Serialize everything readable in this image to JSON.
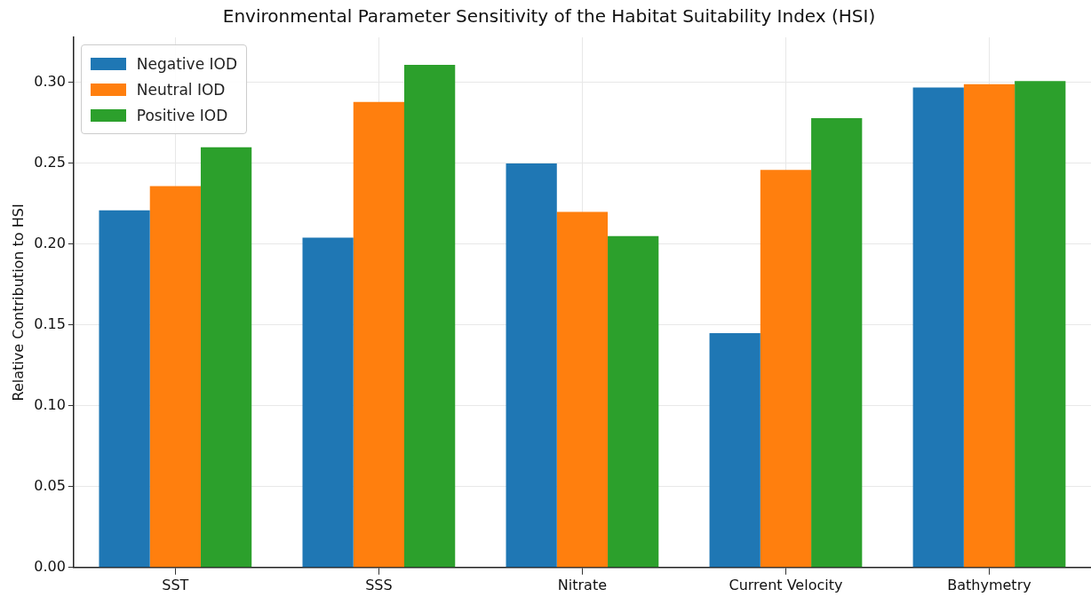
{
  "chart_data": {
    "type": "bar",
    "title": "Environmental Parameter Sensitivity of the Habitat Suitability Index (HSI)",
    "ylabel": "Relative Contribution to HSI",
    "categories": [
      "SST",
      "SSS",
      "Nitrate",
      "Current Velocity",
      "Bathymetry"
    ],
    "series": [
      {
        "name": "Negative IOD",
        "color": "#1f77b4",
        "values": [
          0.221,
          0.204,
          0.25,
          0.145,
          0.297
        ]
      },
      {
        "name": "Neutral IOD",
        "color": "#ff7f0e",
        "values": [
          0.236,
          0.288,
          0.22,
          0.246,
          0.299
        ]
      },
      {
        "name": "Positive IOD",
        "color": "#2ca02c",
        "values": [
          0.26,
          0.311,
          0.205,
          0.278,
          0.301
        ]
      }
    ],
    "ylim": [
      0,
      0.328
    ],
    "yticks": [
      {
        "value": 0,
        "label": "0.00"
      },
      {
        "value": 0.05,
        "label": "0.05"
      },
      {
        "value": 0.1,
        "label": "0.10"
      },
      {
        "value": 0.15,
        "label": "0.15"
      },
      {
        "value": 0.2,
        "label": "0.20"
      },
      {
        "value": 0.25,
        "label": "0.25"
      },
      {
        "value": 0.3,
        "label": "0.30"
      }
    ],
    "grid": true,
    "legend": "top left"
  }
}
